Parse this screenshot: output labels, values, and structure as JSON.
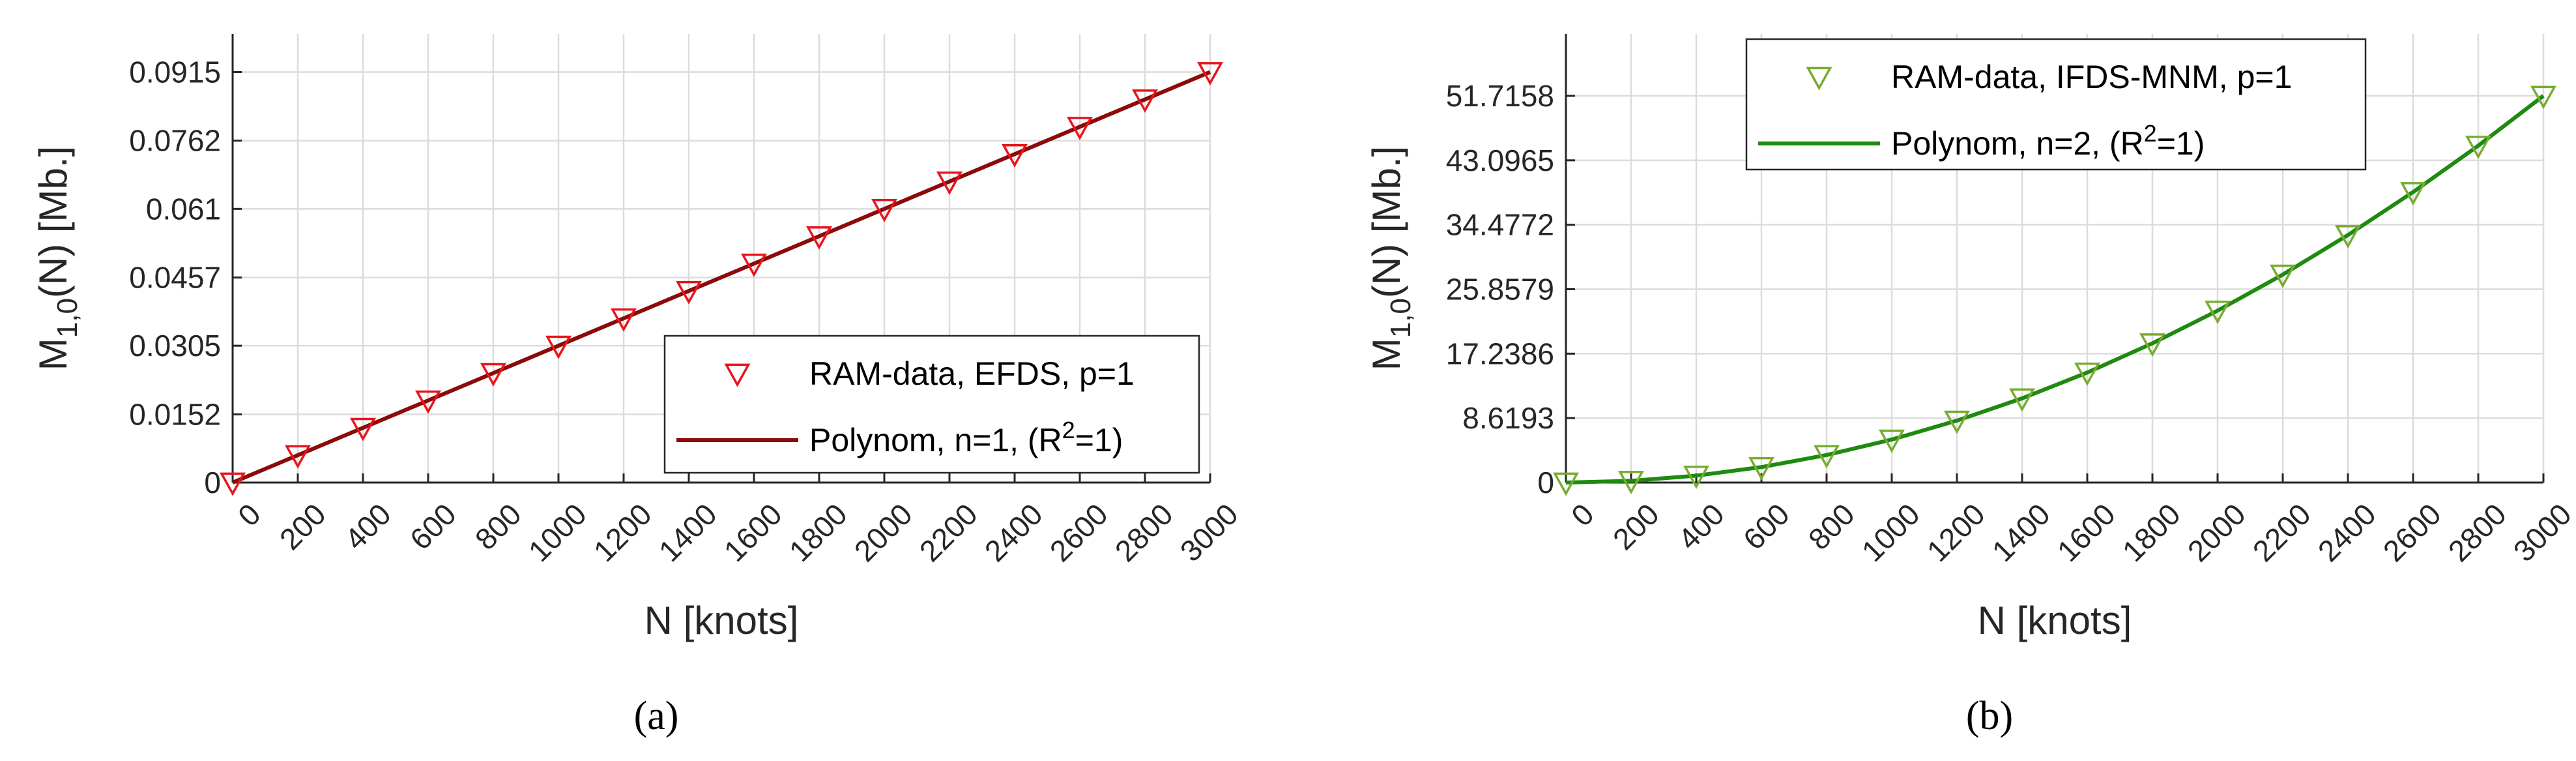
{
  "chart_data": [
    {
      "type": "line",
      "panel_label": "(a)",
      "xlabel": "N [knots]",
      "ylabel": "M",
      "ylabel_sub": "1,0",
      "ylabel_tail": "(N)  [Mb.]",
      "xlim": [
        0,
        3000
      ],
      "ylim": [
        0,
        0.1
      ],
      "grid": true,
      "x_ticks": [
        0,
        200,
        400,
        600,
        800,
        1000,
        1200,
        1400,
        1600,
        1800,
        2000,
        2200,
        2400,
        2600,
        2800,
        3000
      ],
      "x_tick_labels": [
        "0",
        "200",
        "400",
        "600",
        "800",
        "1000",
        "1200",
        "1400",
        "1600",
        "1800",
        "2000",
        "2200",
        "2400",
        "2600",
        "2800",
        "3000"
      ],
      "y_ticks": [
        0,
        0.0152,
        0.0305,
        0.0457,
        0.061,
        0.0762,
        0.0915
      ],
      "y_tick_labels": [
        "0",
        "0.0152",
        "0.0305",
        "0.0457",
        "0.061",
        "0.0762",
        "0.0915"
      ],
      "legend_position": "bottom-right",
      "series": [
        {
          "name": "RAM-data, EFDS, p=1",
          "kind": "markers",
          "marker": "triangle-down",
          "color": "#e8141b",
          "x": [
            0,
            200,
            400,
            600,
            800,
            1000,
            1200,
            1400,
            1600,
            1800,
            2000,
            2200,
            2400,
            2600,
            2800,
            3000
          ],
          "y": [
            0.0,
            0.0061,
            0.0122,
            0.0183,
            0.0244,
            0.0305,
            0.0366,
            0.0427,
            0.0488,
            0.0549,
            0.061,
            0.0671,
            0.0732,
            0.0793,
            0.0854,
            0.0915
          ]
        },
        {
          "name": "Polynom, n=1, (R",
          "name_sup": "2",
          "name_tail": "=1)",
          "kind": "line",
          "color": "#8b0a0a",
          "x": [
            0,
            3000
          ],
          "y": [
            0.0,
            0.0915
          ]
        }
      ]
    },
    {
      "type": "line",
      "panel_label": "(b)",
      "xlabel": "N [knots]",
      "ylabel": "M",
      "ylabel_sub": "1,0",
      "ylabel_tail": "(N)  [Mb.]",
      "xlim": [
        0,
        3000
      ],
      "ylim": [
        0,
        60
      ],
      "grid": true,
      "x_ticks": [
        0,
        200,
        400,
        600,
        800,
        1000,
        1200,
        1400,
        1600,
        1800,
        2000,
        2200,
        2400,
        2600,
        2800,
        3000
      ],
      "x_tick_labels": [
        "0",
        "200",
        "400",
        "600",
        "800",
        "1000",
        "1200",
        "1400",
        "1600",
        "1800",
        "2000",
        "2200",
        "2400",
        "2600",
        "2800",
        "3000"
      ],
      "y_ticks": [
        0,
        8.6193,
        17.2386,
        25.8579,
        34.4772,
        43.0965,
        51.7158
      ],
      "y_tick_labels": [
        "0",
        "8.6193",
        "17.2386",
        "25.8579",
        "34.4772",
        "43.0965",
        "51.7158"
      ],
      "legend_position": "top-left",
      "series": [
        {
          "name": "RAM-data, IFDS-MNM, p=1",
          "kind": "markers",
          "marker": "triangle-down",
          "color": "#77ac30",
          "x": [
            0,
            200,
            400,
            600,
            800,
            1000,
            1200,
            1400,
            1600,
            1800,
            2000,
            2200,
            2400,
            2600,
            2800,
            3000
          ],
          "y": [
            0.0,
            0.23,
            0.92,
            2.07,
            3.68,
            5.75,
            8.28,
            11.26,
            14.71,
            18.62,
            22.99,
            27.81,
            33.1,
            38.85,
            45.05,
            51.72
          ]
        },
        {
          "name": "Polynom, n=2, (R",
          "name_sup": "2",
          "name_tail": "=1)",
          "kind": "line",
          "color": "#1e8a10",
          "x": [
            0,
            200,
            400,
            600,
            800,
            1000,
            1200,
            1400,
            1600,
            1800,
            2000,
            2200,
            2400,
            2600,
            2800,
            3000
          ],
          "y": [
            0.0,
            0.23,
            0.92,
            2.07,
            3.68,
            5.75,
            8.28,
            11.26,
            14.71,
            18.62,
            22.99,
            27.81,
            33.1,
            38.85,
            45.05,
            51.72
          ]
        }
      ]
    }
  ]
}
